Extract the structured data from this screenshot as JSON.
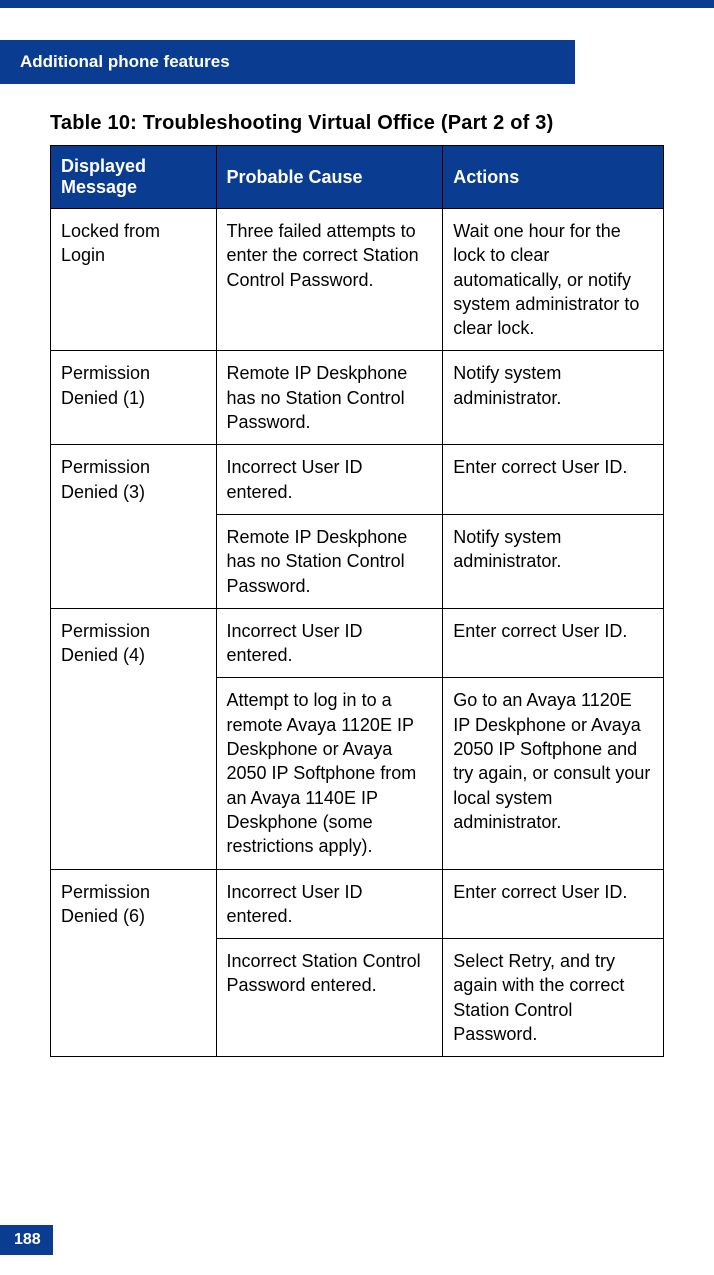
{
  "colors": {
    "brand_blue": "#0a3d91",
    "white": "#ffffff",
    "black": "#000000"
  },
  "header": {
    "section_title": "Additional phone features"
  },
  "page_number": "188",
  "table": {
    "caption": "Table 10: Troubleshooting Virtual Office (Part 2 of 3)",
    "columns": [
      "Displayed Message",
      "Probable Cause",
      "Actions"
    ],
    "rows": [
      {
        "message": "Locked from Login",
        "message_rowspan": 1,
        "causes_actions": [
          {
            "cause": "Three failed attempts to enter the correct Station Control Password.",
            "action": "Wait one hour for the lock to clear automatically, or notify system administrator to clear lock."
          }
        ]
      },
      {
        "message": "Permission Denied (1)",
        "message_rowspan": 1,
        "causes_actions": [
          {
            "cause": "Remote IP Deskphone has no Station Control Password.",
            "action": "Notify system administrator."
          }
        ]
      },
      {
        "message": "Permission Denied (3)",
        "message_rowspan": 2,
        "causes_actions": [
          {
            "cause": "Incorrect User ID entered.",
            "action": "Enter correct User ID."
          },
          {
            "cause": "Remote IP Deskphone has no Station Control Password.",
            "action": "Notify system administrator."
          }
        ]
      },
      {
        "message": "Permission Denied (4)",
        "message_rowspan": 2,
        "causes_actions": [
          {
            "cause": "Incorrect User ID entered.",
            "action": "Enter correct User ID."
          },
          {
            "cause": "Attempt to log in to a remote Avaya 1120E IP Deskphone  or Avaya 2050 IP Softphone from an Avaya 1140E IP Deskphone (some restrictions apply).",
            "action": "Go to an Avaya 1120E IP Deskphone or Avaya 2050 IP Softphone and try again, or consult your local system administrator."
          }
        ]
      },
      {
        "message": "Permission Denied (6)",
        "message_rowspan": 2,
        "causes_actions": [
          {
            "cause": "Incorrect User ID entered.",
            "action": "Enter correct User ID."
          },
          {
            "cause": "Incorrect Station Control Password entered.",
            "action": "Select Retry, and try again with the correct Station Control Password."
          }
        ]
      }
    ]
  }
}
